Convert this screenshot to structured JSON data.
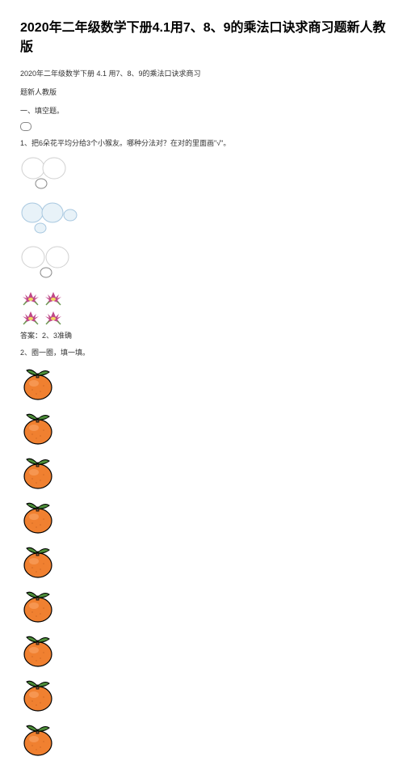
{
  "title": "2020年二年级数学下册4.1用7、8、9的乘法口诀求商习题新人教版",
  "subtitle": "2020年二年级数学下册 4.1 用7、8、9的乘法口诀求商习",
  "edition": "题新人教版",
  "section1": "一、填空题。",
  "question1": "1、把6朵花平均分给3个小猴友。哪种分法对？在对的里面画\"√\"。",
  "answer1": "答案：2、3准确",
  "question2": "2、圈一圈，填一填。",
  "circles": {
    "group1": {
      "big": {
        "stroke": "#d4d4d4",
        "fill": "#ffffff"
      },
      "small": {
        "stroke": "#888888",
        "fill": "#ffffff"
      }
    },
    "group2": {
      "big": {
        "stroke": "#b0d0e8",
        "fill": "#e8f2f8"
      },
      "small": {
        "stroke": "#b0d0e8",
        "fill": "#e8f2f8"
      }
    },
    "group3": {
      "big": {
        "stroke": "#d4d4d4",
        "fill": "#ffffff"
      },
      "small": {
        "stroke": "#888888",
        "fill": "#ffffff"
      }
    }
  },
  "flower": {
    "petal_color": "#c04888",
    "center_color": "#f0d860",
    "leaf_color": "#6a9850"
  },
  "orange": {
    "body_color": "#f08030",
    "body_highlight": "#f8a060",
    "leaf_color": "#408030",
    "leaf_highlight": "#60a048",
    "stem_color": "#886040",
    "outline_color": "#000000",
    "count": 9
  }
}
